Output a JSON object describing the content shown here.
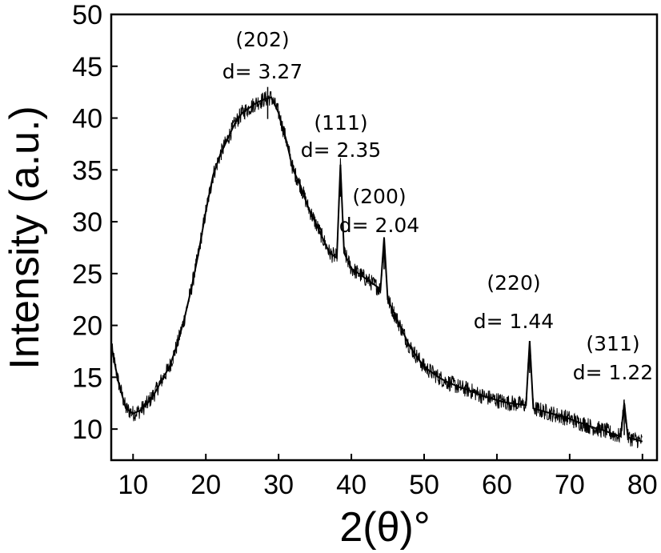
{
  "chart_data": {
    "type": "line",
    "xlabel": "2(θ)°",
    "ylabel": "Intensity (a.u.)",
    "xlim": [
      7,
      82
    ],
    "ylim": [
      7,
      50
    ],
    "xticks": [
      10,
      20,
      30,
      40,
      50,
      60,
      70,
      80
    ],
    "yticks": [
      10,
      15,
      20,
      25,
      30,
      35,
      40,
      45,
      50
    ],
    "grid": false,
    "legend": "none",
    "line_color": "#000000",
    "x": [
      7.0,
      8.0,
      9.0,
      10.0,
      11.0,
      12.0,
      13.0,
      14.0,
      15.0,
      16.0,
      17.0,
      18.0,
      19.0,
      20.0,
      21.0,
      22.0,
      23.0,
      24.0,
      25.0,
      26.0,
      27.0,
      28.0,
      29.0,
      30.0,
      31.0,
      32.0,
      33.0,
      34.0,
      35.0,
      36.0,
      37.0,
      38.0,
      38.5,
      39.0,
      40.0,
      41.0,
      42.0,
      43.0,
      44.0,
      44.5,
      45.0,
      46.0,
      47.0,
      48.0,
      49.0,
      50.0,
      51.0,
      52.0,
      53.0,
      54.0,
      55.0,
      56.0,
      57.0,
      58.0,
      59.0,
      60.0,
      61.0,
      62.0,
      63.0,
      64.0,
      64.5,
      65.0,
      66.0,
      67.0,
      68.0,
      69.0,
      70.0,
      71.0,
      72.0,
      73.0,
      74.0,
      75.0,
      76.0,
      77.0,
      77.5,
      78.0,
      79.0,
      80.0
    ],
    "y": [
      18.0,
      14.5,
      12.0,
      11.5,
      11.8,
      12.5,
      13.5,
      14.8,
      16.0,
      18.0,
      20.5,
      23.5,
      27.0,
      31.0,
      34.5,
      36.5,
      38.0,
      39.5,
      40.5,
      41.0,
      41.5,
      41.8,
      42.0,
      40.5,
      38.0,
      35.0,
      33.5,
      31.5,
      30.0,
      28.5,
      27.0,
      26.5,
      35.5,
      27.0,
      25.5,
      25.0,
      24.5,
      24.0,
      23.5,
      28.5,
      22.5,
      21.0,
      19.5,
      18.0,
      17.0,
      16.0,
      15.5,
      15.0,
      14.6,
      14.3,
      14.0,
      13.8,
      13.5,
      13.2,
      13.0,
      12.8,
      12.6,
      12.5,
      12.4,
      12.3,
      18.5,
      12.0,
      11.8,
      11.6,
      11.4,
      11.2,
      11.0,
      10.7,
      10.5,
      10.2,
      10.0,
      9.8,
      9.5,
      9.3,
      12.5,
      9.2,
      9.0,
      8.8
    ],
    "annotations": [
      {
        "label": "(202)",
        "d": "d= 3.27",
        "x": 28.5,
        "y": 43.0
      },
      {
        "label": "(111)",
        "d": "d= 2.35",
        "x": 38.5,
        "y": 35.5
      },
      {
        "label": "(200)",
        "d": "d= 2.04",
        "x": 44.5,
        "y": 28.5
      },
      {
        "label": "(220)",
        "d": "d= 1.44",
        "x": 64.5,
        "y": 18.5
      },
      {
        "label": "(311)",
        "d": "d= 1.22",
        "x": 77.5,
        "y": 12.5
      }
    ]
  }
}
